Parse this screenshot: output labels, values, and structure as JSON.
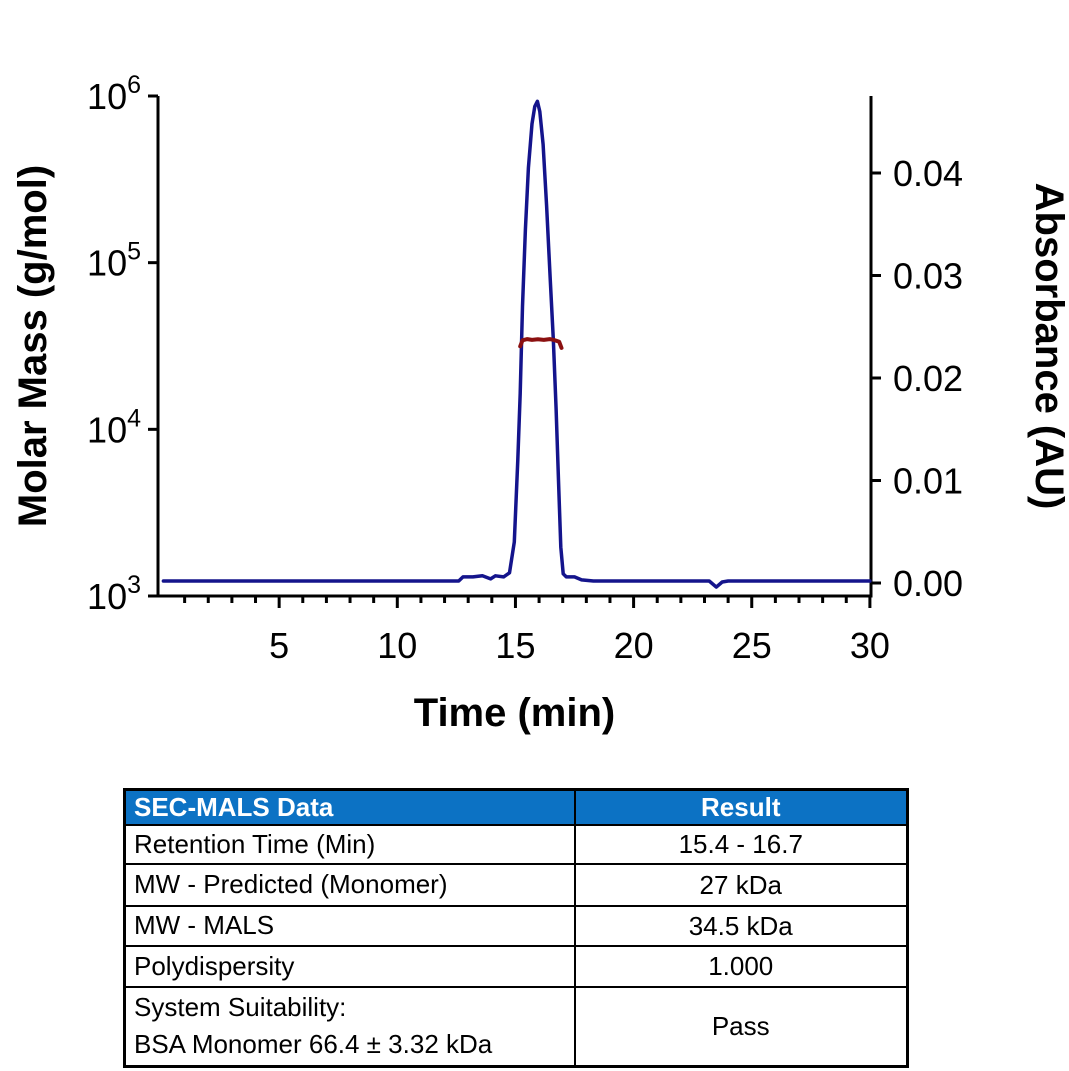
{
  "chart_data": {
    "type": "line",
    "title": "",
    "xlabel": "Time (min)",
    "x_axis": {
      "range": [
        0,
        30
      ],
      "major_ticks": [
        5,
        10,
        15,
        20,
        25,
        30
      ],
      "minor_tick_interval": 1
    },
    "left_axis": {
      "label": "Molar Mass (g/mol)",
      "scale": "log",
      "range_exponents": [
        3,
        6
      ],
      "tick_exponents": [
        6,
        5,
        4,
        3
      ],
      "tick_base": "10"
    },
    "right_axis": {
      "label": "Absorbance (AU)",
      "scale": "linear",
      "range": [
        0,
        0.0475
      ],
      "ticks": [
        0.04,
        0.03,
        0.02,
        0.01,
        0.0
      ]
    },
    "grid": false,
    "legend": "none",
    "series": [
      {
        "name": "uv-absorbance-trace",
        "axis": "right",
        "color": "#14148C",
        "points": [
          [
            0.1,
            0.0002
          ],
          [
            2,
            0.0002
          ],
          [
            4,
            0.0002
          ],
          [
            6,
            0.0002
          ],
          [
            8,
            0.0002
          ],
          [
            10,
            0.0002
          ],
          [
            12,
            0.0002
          ],
          [
            12.6,
            0.0002
          ],
          [
            12.78,
            0.0006
          ],
          [
            13.2,
            0.0006
          ],
          [
            13.6,
            0.0007
          ],
          [
            13.95,
            0.0004
          ],
          [
            14.15,
            0.0007
          ],
          [
            14.5,
            0.0006
          ],
          [
            14.75,
            0.001
          ],
          [
            14.95,
            0.004
          ],
          [
            15.1,
            0.012
          ],
          [
            15.2,
            0.0185
          ],
          [
            15.3,
            0.027
          ],
          [
            15.42,
            0.0345
          ],
          [
            15.55,
            0.0405
          ],
          [
            15.7,
            0.0448
          ],
          [
            15.82,
            0.0465
          ],
          [
            15.93,
            0.047
          ],
          [
            16.03,
            0.046
          ],
          [
            16.17,
            0.0428
          ],
          [
            16.32,
            0.0368
          ],
          [
            16.47,
            0.0297
          ],
          [
            16.6,
            0.0238
          ],
          [
            16.72,
            0.017
          ],
          [
            16.82,
            0.01
          ],
          [
            16.92,
            0.0035
          ],
          [
            17.02,
            0.0009
          ],
          [
            17.15,
            0.0006
          ],
          [
            17.5,
            0.0006
          ],
          [
            17.8,
            0.0003
          ],
          [
            18.3,
            0.0002
          ],
          [
            19,
            0.0002
          ],
          [
            20,
            0.0002
          ],
          [
            21,
            0.0002
          ],
          [
            22,
            0.0002
          ],
          [
            23.2,
            0.0002
          ],
          [
            23.5,
            -0.0004
          ],
          [
            23.75,
            0.0001
          ],
          [
            24,
            0.0002
          ],
          [
            25,
            0.0002
          ],
          [
            26,
            0.0002
          ],
          [
            27,
            0.0002
          ],
          [
            28,
            0.0002
          ],
          [
            29,
            0.0002
          ],
          [
            30,
            0.0002
          ]
        ]
      },
      {
        "name": "mals-molar-mass-trace",
        "axis": "left",
        "color": "#8B1010",
        "points": [
          [
            15.2,
            31500
          ],
          [
            15.3,
            34200
          ],
          [
            15.5,
            34800
          ],
          [
            15.7,
            34400
          ],
          [
            15.95,
            34700
          ],
          [
            16.2,
            34400
          ],
          [
            16.45,
            34800
          ],
          [
            16.65,
            34300
          ],
          [
            16.85,
            33500
          ],
          [
            16.95,
            30800
          ]
        ]
      }
    ],
    "annotations": {
      "peak_apex_time_min": 15.93,
      "peak_apex_absorbance_AU": 0.047,
      "mals_molar_mass_g_mol": 34500
    }
  },
  "table": {
    "header": {
      "col1": "SEC-MALS Data",
      "col2": "Result"
    },
    "header_bg": "#0C72C4",
    "rows": [
      {
        "label": [
          "Retention Time (Min)"
        ],
        "value": "15.4 - 16.7"
      },
      {
        "label": [
          "MW - Predicted (Monomer)"
        ],
        "value": "27 kDa"
      },
      {
        "label": [
          "MW - MALS"
        ],
        "value": "34.5 kDa"
      },
      {
        "label": [
          "Polydispersity"
        ],
        "value": "1.000"
      },
      {
        "label": [
          "System Suitability:",
          "BSA Monomer 66.4 ± 3.32 kDa"
        ],
        "value": "Pass"
      }
    ]
  },
  "colors": {
    "axis": "#000000",
    "absorbance_line": "#14148C",
    "molar_mass_line": "#8B1010",
    "table_header_bg": "#0C72C4",
    "table_header_text": "#FFFFFF"
  }
}
